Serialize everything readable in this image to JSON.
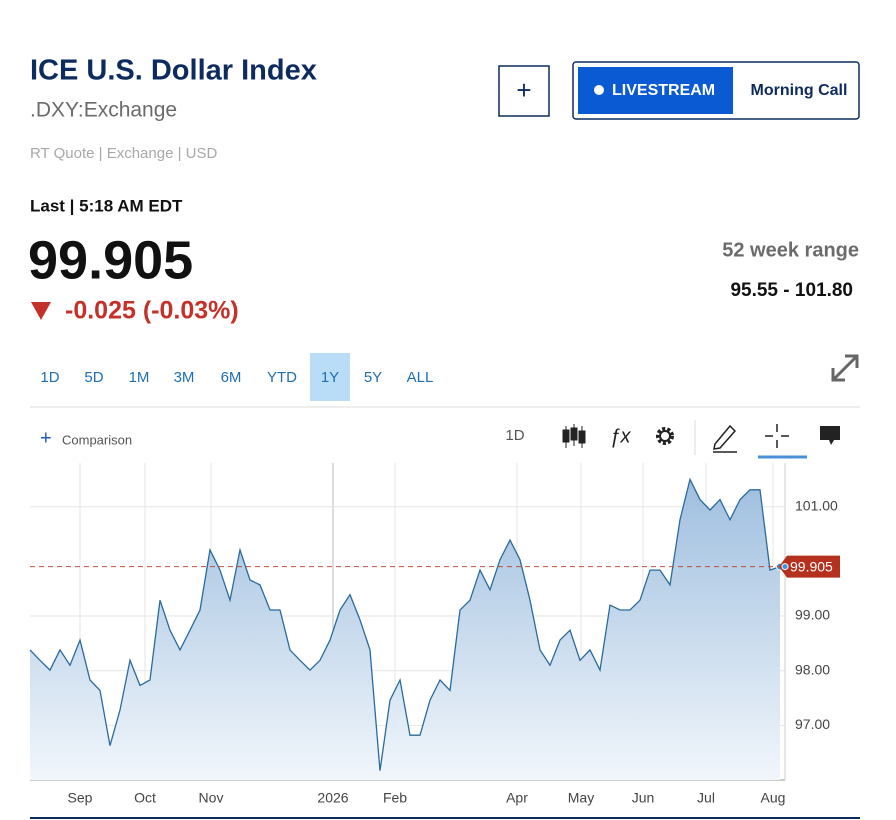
{
  "header": {
    "title": "ICE U.S. Dollar Index",
    "symbol": ".DXY:Exchange",
    "quote_info": "RT Quote | Exchange | USD"
  },
  "buttons": {
    "add": "+",
    "livestream": "LIVESTREAM",
    "morning_call": "Morning Call"
  },
  "quote": {
    "last_label": "Last | 5:18 AM EDT",
    "price": "99.905",
    "change": "-0.025 (-0.03%)",
    "range_label": "52 week range",
    "range": "95.55 - 101.80"
  },
  "ranges": [
    "1D",
    "5D",
    "1M",
    "3M",
    "6M",
    "YTD",
    "1Y",
    "5Y",
    "ALL"
  ],
  "selected_range": "1Y",
  "toolbar": {
    "comparison": "Comparison",
    "interval": "1D"
  },
  "chart_data": {
    "type": "area",
    "color": "#2a6a9e",
    "values": [
      98.38,
      98.19,
      98.01,
      98.38,
      98.1,
      98.56,
      97.83,
      97.64,
      96.63,
      97.28,
      98.19,
      97.73,
      97.83,
      99.29,
      98.74,
      98.38,
      98.74,
      99.11,
      100.21,
      99.84,
      99.29,
      100.21,
      99.66,
      99.57,
      99.11,
      99.11,
      98.38,
      98.19,
      98.01,
      98.19,
      98.56,
      99.11,
      99.39,
      98.93,
      98.38,
      96.17,
      97.46,
      97.83,
      96.82,
      96.82,
      97.46,
      97.83,
      97.64,
      99.11,
      99.29,
      99.84,
      99.48,
      100.03,
      100.39,
      100.03,
      99.29,
      98.38,
      98.1,
      98.56,
      98.74,
      98.19,
      98.38,
      98.01,
      99.2,
      99.11,
      99.11,
      99.29,
      99.84,
      99.84,
      99.57,
      100.76,
      101.5,
      101.13,
      100.94,
      101.13,
      100.76,
      101.13,
      101.31,
      101.31,
      99.84,
      99.905
    ],
    "xlim": [
      0,
      75.5
    ],
    "xticks": [
      {
        "value": 5,
        "label": "Sep"
      },
      {
        "value": 11.5,
        "label": "Oct"
      },
      {
        "value": 18.1,
        "label": "Nov"
      },
      {
        "value": 30.3,
        "label": "2026"
      },
      {
        "value": 36.5,
        "label": "Feb"
      },
      {
        "value": 48.7,
        "label": "Apr"
      },
      {
        "value": 55.1,
        "label": "May"
      },
      {
        "value": 61.3,
        "label": "Jun"
      },
      {
        "value": 67.6,
        "label": "Jul"
      },
      {
        "value": 74.3,
        "label": "Aug"
      }
    ],
    "ylim": [
      96.0,
      101.8
    ],
    "yticks": [
      {
        "value": 97,
        "label": "97.00"
      },
      {
        "value": 98,
        "label": "98.00"
      },
      {
        "value": 99,
        "label": "99.00"
      },
      {
        "value": 101,
        "label": "101.00"
      }
    ],
    "price_line": {
      "value": 99.905,
      "label": "99.905"
    },
    "grid": true
  }
}
